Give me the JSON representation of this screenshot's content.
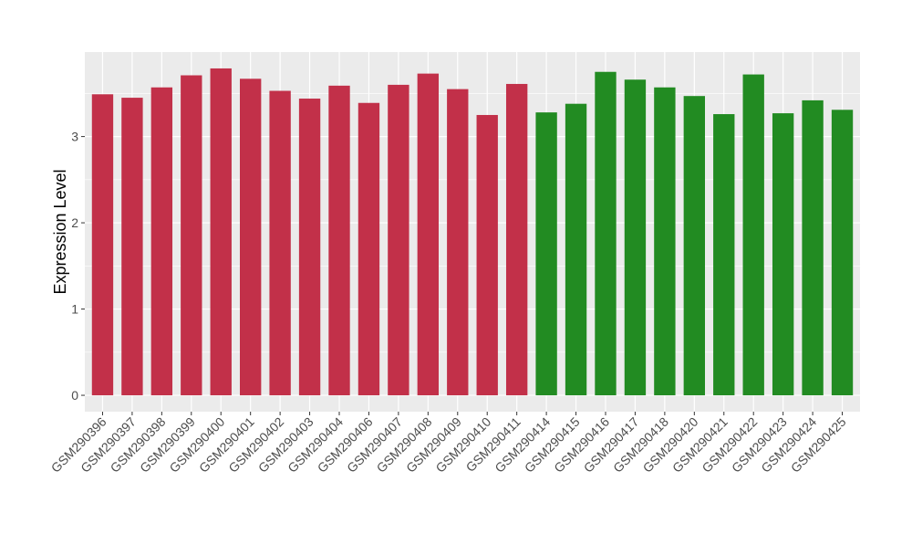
{
  "chart_data": {
    "type": "bar",
    "title": "",
    "xlabel": "",
    "ylabel": "Expression Level",
    "ylim": [
      -0.19,
      3.98
    ],
    "yticks": [
      0,
      1,
      2,
      3
    ],
    "grid": true,
    "categories": [
      "GSM290396",
      "GSM290397",
      "GSM290398",
      "GSM290399",
      "GSM290400",
      "GSM290401",
      "GSM290402",
      "GSM290403",
      "GSM290404",
      "GSM290406",
      "GSM290407",
      "GSM290408",
      "GSM290409",
      "GSM290410",
      "GSM290411",
      "GSM290414",
      "GSM290415",
      "GSM290416",
      "GSM290417",
      "GSM290418",
      "GSM290420",
      "GSM290421",
      "GSM290422",
      "GSM290423",
      "GSM290424",
      "GSM290425"
    ],
    "values": [
      3.49,
      3.45,
      3.57,
      3.71,
      3.79,
      3.67,
      3.53,
      3.44,
      3.59,
      3.39,
      3.6,
      3.73,
      3.55,
      3.25,
      3.61,
      3.28,
      3.38,
      3.75,
      3.66,
      3.57,
      3.47,
      3.26,
      3.72,
      3.27,
      3.42,
      3.31
    ],
    "groups": [
      "red",
      "red",
      "red",
      "red",
      "red",
      "red",
      "red",
      "red",
      "red",
      "red",
      "red",
      "red",
      "red",
      "red",
      "red",
      "green",
      "green",
      "green",
      "green",
      "green",
      "green",
      "green",
      "green",
      "green",
      "green",
      "green"
    ],
    "colors": {
      "red": "#c23049",
      "green": "#228b22",
      "panel": "#ebebeb",
      "grid": "#ffffff"
    }
  }
}
